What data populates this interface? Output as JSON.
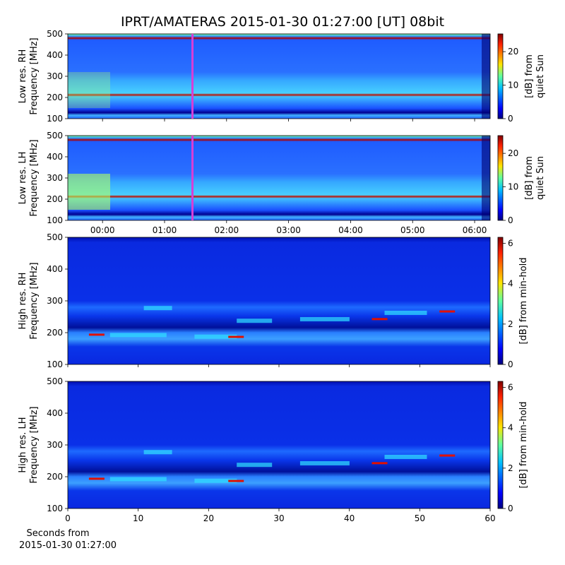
{
  "chart_data": {
    "type": "spectrogram",
    "title": "IPRT/AMATERAS 2015-01-30 01:27:00 [UT]   08bit",
    "time_axis": {
      "xlim": [
        -0.56,
        6.25
      ],
      "xticks": [
        {
          "value": 0,
          "label": "00:00"
        },
        {
          "value": 1,
          "label": "01:00"
        },
        {
          "value": 2,
          "label": "02:00"
        },
        {
          "value": 3,
          "label": "03:00"
        },
        {
          "value": 4,
          "label": "04:00"
        },
        {
          "value": 5,
          "label": "05:00"
        },
        {
          "value": 6,
          "label": "06:00"
        }
      ],
      "marker": 1.45,
      "marker_color": "#d63fd6"
    },
    "seconds_axis": {
      "xlim": [
        0,
        60
      ],
      "xticks": [
        0,
        10,
        20,
        30,
        40,
        50,
        60
      ],
      "xlabel": [
        "Seconds from",
        "2015-01-30 01:27:00"
      ]
    },
    "panels": [
      {
        "resolution": "low",
        "ylabel": [
          "Low res. RH",
          "Frequency [MHz]"
        ],
        "ylim": [
          100,
          500
        ],
        "yticks": [
          100,
          200,
          300,
          400,
          500
        ],
        "colorbar": {
          "label": [
            "[dB] from",
            "quiet Sun"
          ],
          "lim": [
            0,
            25.3
          ],
          "ticks": [
            0,
            10,
            20
          ]
        }
      },
      {
        "resolution": "low",
        "ylabel": [
          "Low res. LH",
          "Frequency [MHz]"
        ],
        "ylim": [
          100,
          500
        ],
        "yticks": [
          100,
          200,
          300,
          400,
          500
        ],
        "colorbar": {
          "label": [
            "[dB] from",
            "quiet Sun"
          ],
          "lim": [
            0,
            25.3
          ],
          "ticks": [
            0,
            10,
            20
          ]
        }
      },
      {
        "resolution": "high",
        "ylabel": [
          "High res. RH",
          "Frequency [MHz]"
        ],
        "ylim": [
          100,
          500
        ],
        "yticks": [
          100,
          200,
          300,
          400,
          500
        ],
        "colorbar": {
          "label": [
            "[dB] from min-hold"
          ],
          "lim": [
            0,
            6.3
          ],
          "ticks": [
            0,
            2,
            4,
            6
          ]
        }
      },
      {
        "resolution": "high",
        "ylabel": [
          "High res. LH",
          "Frequency [MHz]"
        ],
        "ylim": [
          100,
          500
        ],
        "yticks": [
          100,
          200,
          300,
          400,
          500
        ],
        "colorbar": {
          "label": [
            "[dB] from min-hold"
          ],
          "lim": [
            0,
            6.3
          ],
          "ticks": [
            0,
            2,
            4,
            6
          ]
        }
      }
    ]
  }
}
